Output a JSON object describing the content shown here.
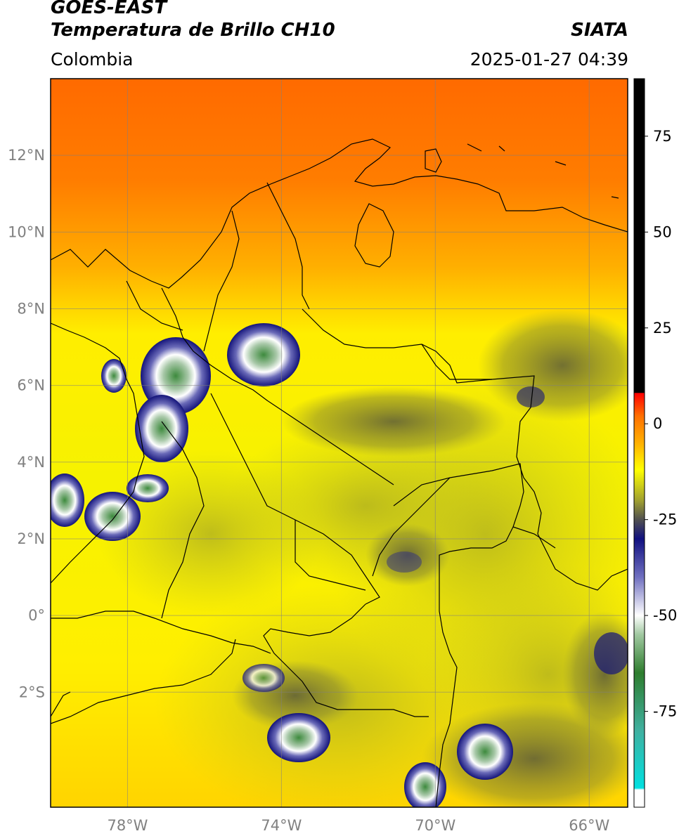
{
  "header": {
    "satellite": "GOES-EAST",
    "product": "Temperatura de Brillo CH10",
    "region": "Colombia",
    "organization": "SIATA",
    "datetime": "2025-01-27 04:39"
  },
  "map": {
    "lon_range": [
      -80,
      -65
    ],
    "lat_range": [
      -5,
      14
    ],
    "lat_ticks": [
      {
        "value": 12,
        "label": "12°N"
      },
      {
        "value": 10,
        "label": "10°N"
      },
      {
        "value": 8,
        "label": "8°N"
      },
      {
        "value": 6,
        "label": "6°N"
      },
      {
        "value": 4,
        "label": "4°N"
      },
      {
        "value": 2,
        "label": "2°N"
      },
      {
        "value": 0,
        "label": "0°"
      },
      {
        "value": -2,
        "label": "2°S"
      }
    ],
    "lon_ticks": [
      {
        "value": -78,
        "label": "78°W"
      },
      {
        "value": -74,
        "label": "74°W"
      },
      {
        "value": -70,
        "label": "70°W"
      },
      {
        "value": -66,
        "label": "66°W"
      }
    ],
    "gridlines": true
  },
  "colorbar": {
    "range": [
      -100,
      90
    ],
    "ticks": [
      {
        "value": 75,
        "label": "75"
      },
      {
        "value": 50,
        "label": "50"
      },
      {
        "value": 25,
        "label": "25"
      },
      {
        "value": 0,
        "label": "0"
      },
      {
        "value": -25,
        "label": "-25"
      },
      {
        "value": -50,
        "label": "-50"
      },
      {
        "value": -75,
        "label": "-75"
      }
    ],
    "stops": [
      {
        "value": -100,
        "color": "#ffffff"
      },
      {
        "value": -95.5,
        "color": "#ffffff"
      },
      {
        "value": -95,
        "color": "#00e0e0"
      },
      {
        "value": -80,
        "color": "#40b0a0"
      },
      {
        "value": -65,
        "color": "#2e7d2e"
      },
      {
        "value": -55,
        "color": "#a0c8a0"
      },
      {
        "value": -50,
        "color": "#ffffff"
      },
      {
        "value": -40,
        "color": "#7070c0"
      },
      {
        "value": -30,
        "color": "#101080"
      },
      {
        "value": -25,
        "color": "#505050"
      },
      {
        "value": -20,
        "color": "#a0a030"
      },
      {
        "value": -12,
        "color": "#ffff00"
      },
      {
        "value": -5,
        "color": "#ffb000"
      },
      {
        "value": 2,
        "color": "#ff7000"
      },
      {
        "value": 8,
        "color": "#ff0000"
      },
      {
        "value": 8.1,
        "color": "#000000"
      },
      {
        "value": 90,
        "color": "#000000"
      }
    ]
  }
}
